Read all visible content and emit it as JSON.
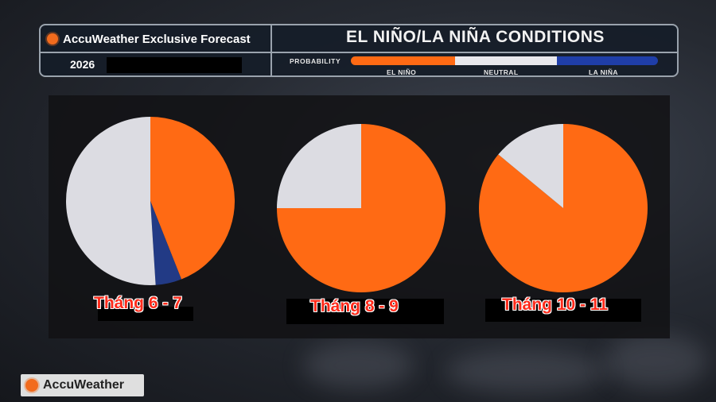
{
  "header": {
    "brand": "AccuWeather Exclusive Forecast",
    "year": "2026",
    "title": "EL NIÑO/LA NIÑA CONDITIONS",
    "probability_label": "PROBABILITY",
    "legend": [
      {
        "label": "EL NIÑO",
        "color": "#ff6a14"
      },
      {
        "label": "NEUTRAL",
        "color": "#e8e8ec"
      },
      {
        "label": "LA NIÑA",
        "color": "#1f3ea8"
      }
    ]
  },
  "chart_data": [
    {
      "type": "pie",
      "label": "Tháng 6 - 7",
      "categories": [
        "EL NIÑO",
        "LA NIÑA",
        "NEUTRAL"
      ],
      "values": [
        44,
        5,
        51
      ],
      "colors": [
        "#ff6a14",
        "#223a85",
        "#dcdce2"
      ]
    },
    {
      "type": "pie",
      "label": "Tháng 8 - 9",
      "categories": [
        "EL NIÑO",
        "NEUTRAL"
      ],
      "values": [
        75,
        25
      ],
      "colors": [
        "#ff6a14",
        "#dcdce2"
      ]
    },
    {
      "type": "pie",
      "label": "Tháng 10 - 11",
      "categories": [
        "EL NIÑO",
        "NEUTRAL"
      ],
      "values": [
        86,
        14
      ],
      "colors": [
        "#ff6a14",
        "#dcdce2"
      ]
    }
  ],
  "logo": {
    "text": "AccuWeather"
  }
}
